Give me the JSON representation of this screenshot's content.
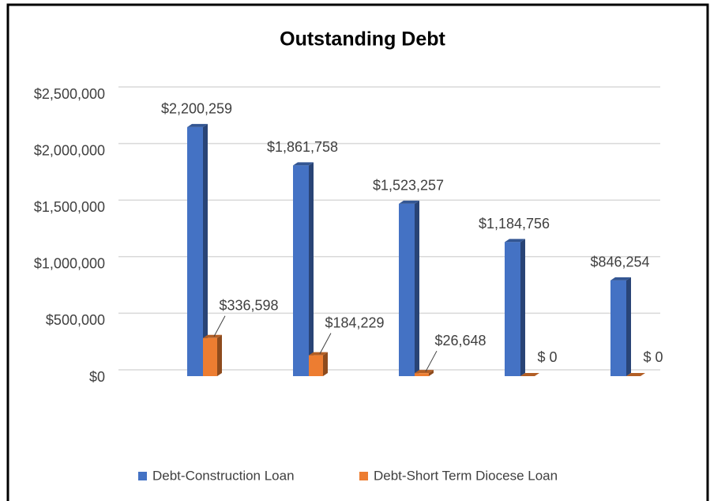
{
  "chart_data": {
    "type": "bar",
    "title": "Outstanding Debt",
    "categories": [
      null,
      null,
      null,
      null,
      null
    ],
    "series": [
      {
        "name": "Debt-Construction Loan",
        "color": "#4472c4",
        "values": [
          2200259,
          1861758,
          1523257,
          1184756,
          846254
        ],
        "value_labels": [
          "$2,200,259",
          "$1,861,758",
          "$1,523,257",
          "$1,184,756",
          "$846,254"
        ]
      },
      {
        "name": "Debt-Short Term Diocese Loan",
        "color": "#ed7d31",
        "values": [
          336598,
          184229,
          26648,
          0,
          0
        ],
        "value_labels": [
          "$336,598",
          "$184,229",
          "$26,648",
          "$ 0",
          "$ 0"
        ]
      }
    ],
    "ylim": [
      0,
      2500000
    ],
    "yticks": [
      {
        "value": 0,
        "label": "$0"
      },
      {
        "value": 500000,
        "label": "$500,000"
      },
      {
        "value": 1000000,
        "label": "$1,000,000"
      },
      {
        "value": 1500000,
        "label": "$1,500,000"
      },
      {
        "value": 2000000,
        "label": "$2,000,000"
      },
      {
        "value": 2500000,
        "label": "$2,500,000"
      }
    ],
    "grid": true,
    "legend": "bottom"
  }
}
